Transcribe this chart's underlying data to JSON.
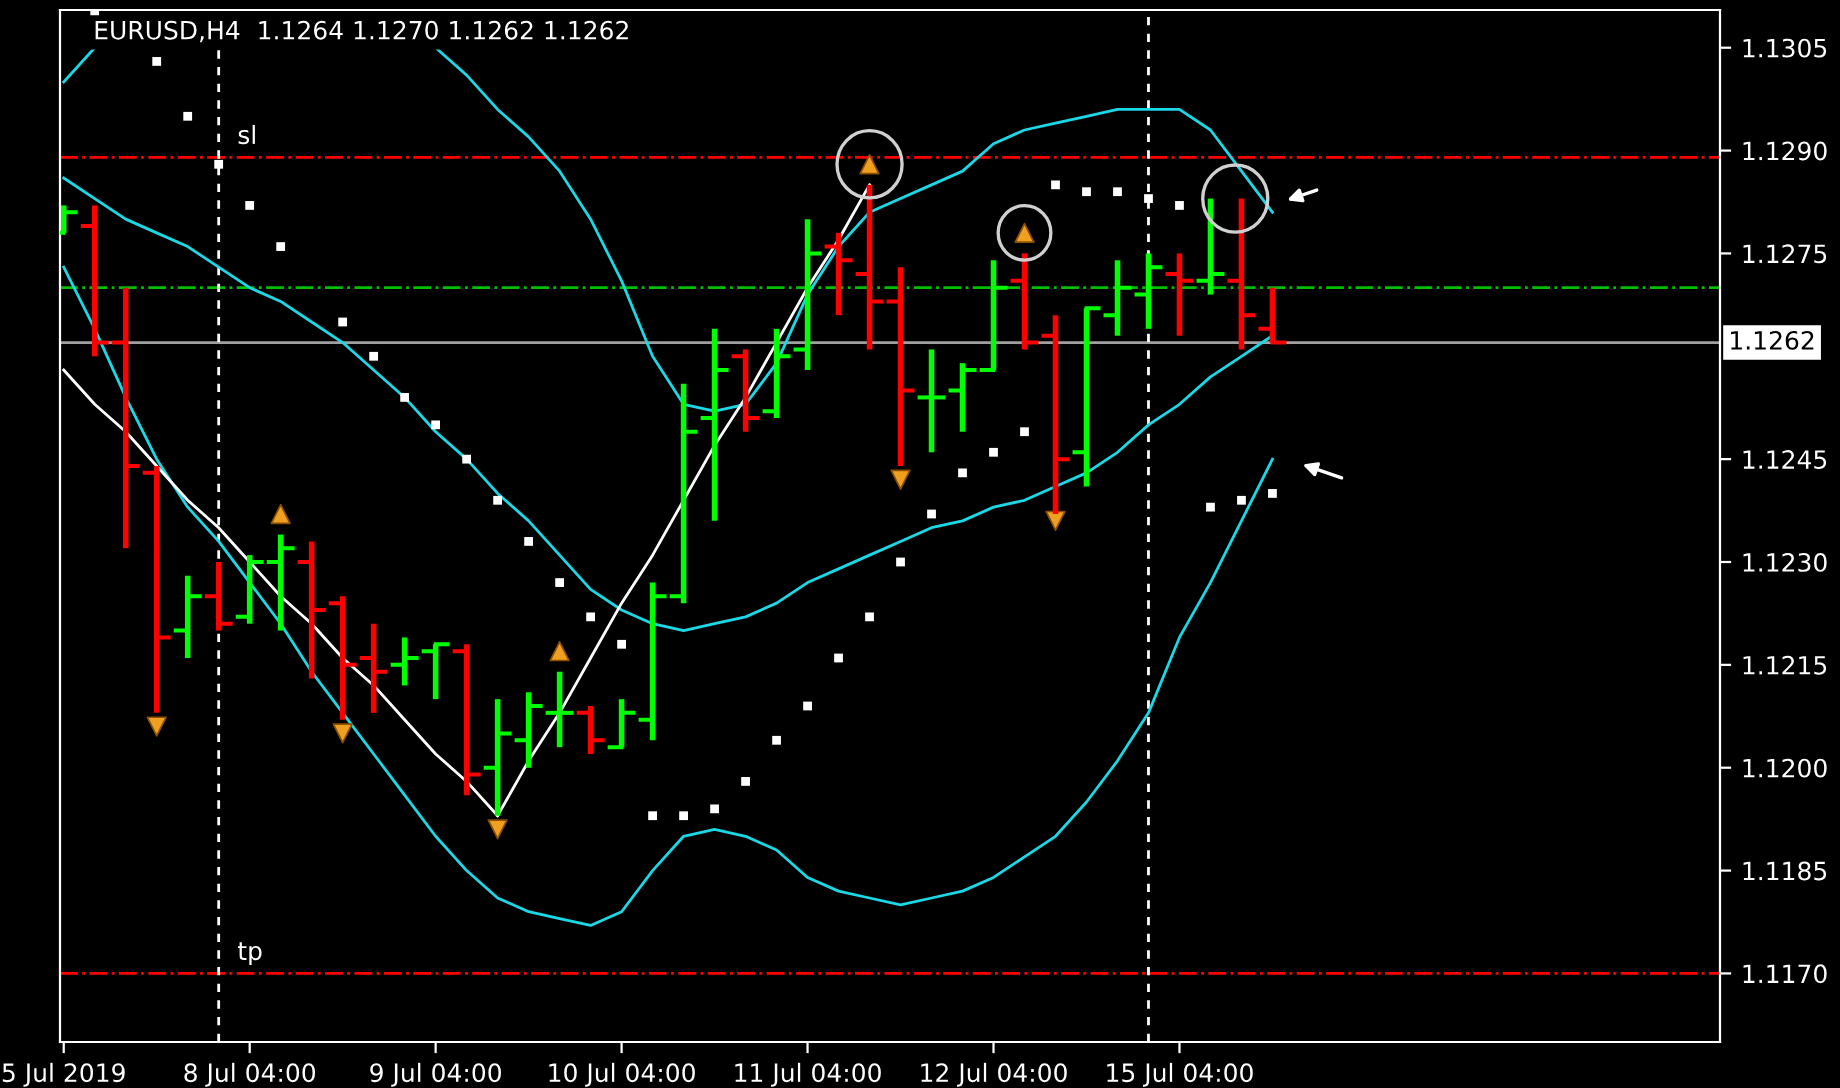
{
  "chart_data": {
    "type": "candlestick",
    "title": "EURUSD,H4  1.1264 1.1270 1.1262 1.1262",
    "categories": [
      "5 Jul 2019",
      null,
      null,
      null,
      null,
      null,
      "8 Jul 04:00",
      null,
      null,
      null,
      null,
      null,
      "9 Jul 04:00",
      null,
      null,
      null,
      null,
      null,
      "10 Jul 04:00",
      null,
      null,
      null,
      null,
      null,
      "11 Jul 04:00",
      null,
      null,
      null,
      null,
      null,
      "12 Jul 04:00",
      null,
      null,
      null,
      null,
      null,
      "15 Jul 04:00",
      null,
      null,
      null
    ],
    "ohlc": [
      [
        1.1278,
        1.1282,
        1.1278,
        1.1281
      ],
      [
        1.1279,
        1.1282,
        1.126,
        1.1262
      ],
      [
        1.1262,
        1.127,
        1.1232,
        1.1244
      ],
      [
        1.1243,
        1.1244,
        1.1208,
        1.1219
      ],
      [
        1.122,
        1.1228,
        1.1216,
        1.1225
      ],
      [
        1.1225,
        1.123,
        1.122,
        1.1221
      ],
      [
        1.1222,
        1.1231,
        1.1221,
        1.123
      ],
      [
        1.123,
        1.1234,
        1.122,
        1.1232
      ],
      [
        1.123,
        1.1233,
        1.1213,
        1.1223
      ],
      [
        1.1224,
        1.1225,
        1.1207,
        1.1215
      ],
      [
        1.1216,
        1.1221,
        1.1208,
        1.1214
      ],
      [
        1.1215,
        1.1219,
        1.1212,
        1.1216
      ],
      [
        1.1217,
        1.1218,
        1.121,
        1.1218
      ],
      [
        1.1217,
        1.1218,
        1.1196,
        1.1199
      ],
      [
        1.12,
        1.121,
        1.1193,
        1.1205
      ],
      [
        1.1204,
        1.1211,
        1.12,
        1.1209
      ],
      [
        1.1208,
        1.1214,
        1.1203,
        1.1208
      ],
      [
        1.1208,
        1.1209,
        1.1202,
        1.1204
      ],
      [
        1.1203,
        1.121,
        1.1203,
        1.1208
      ],
      [
        1.1207,
        1.1227,
        1.1204,
        1.1225
      ],
      [
        1.1225,
        1.1256,
        1.1224,
        1.1249
      ],
      [
        1.1251,
        1.1264,
        1.1236,
        1.1258
      ],
      [
        1.126,
        1.1261,
        1.1249,
        1.1251
      ],
      [
        1.1252,
        1.1264,
        1.1251,
        1.126
      ],
      [
        1.1261,
        1.128,
        1.1258,
        1.1275
      ],
      [
        1.1276,
        1.1278,
        1.1266,
        1.1274
      ],
      [
        1.1272,
        1.1285,
        1.1261,
        1.1268
      ],
      [
        1.1268,
        1.1273,
        1.1244,
        1.1255
      ],
      [
        1.1254,
        1.1261,
        1.1246,
        1.1254
      ],
      [
        1.1255,
        1.1259,
        1.1249,
        1.1258
      ],
      [
        1.1258,
        1.1274,
        1.1258,
        1.127
      ],
      [
        1.1271,
        1.1275,
        1.1261,
        1.1262
      ],
      [
        1.1263,
        1.1266,
        1.1237,
        1.1245
      ],
      [
        1.1246,
        1.1267,
        1.1241,
        1.1267
      ],
      [
        1.1266,
        1.1274,
        1.1263,
        1.127
      ],
      [
        1.1269,
        1.1275,
        1.1264,
        1.1273
      ],
      [
        1.1272,
        1.1275,
        1.1263,
        1.1271
      ],
      [
        1.1271,
        1.1283,
        1.1269,
        1.1272
      ],
      [
        1.1271,
        1.1283,
        1.1261,
        1.1266
      ],
      [
        1.1264,
        1.127,
        1.1262,
        1.1262
      ]
    ],
    "colors": [
      "#00ff00",
      "#ff0000",
      "#ff0000",
      "#ff0000",
      "#00ff00",
      "#ff0000",
      "#00ff00",
      "#00ff00",
      "#ff0000",
      "#ff0000",
      "#ff0000",
      "#00ff00",
      "#00ff00",
      "#ff0000",
      "#00ff00",
      "#00ff00",
      "#00ff00",
      "#ff0000",
      "#00ff00",
      "#00ff00",
      "#00ff00",
      "#00ff00",
      "#ff0000",
      "#00ff00",
      "#00ff00",
      "#ff0000",
      "#ff0000",
      "#ff0000",
      "#00ff00",
      "#00ff00",
      "#00ff00",
      "#ff0000",
      "#ff0000",
      "#00ff00",
      "#00ff00",
      "#00ff00",
      "#ff0000",
      "#00ff00",
      "#ff0000",
      "#ff0000"
    ],
    "series": [
      {
        "type": "line",
        "color": "#1ad8e6",
        "values": [
          1.13,
          1.1305,
          null,
          null,
          null,
          null,
          null,
          null,
          null,
          null,
          null,
          null,
          1.1305,
          1.1301,
          1.1296,
          1.1292,
          1.1287,
          1.128,
          1.1271,
          1.126,
          1.1253,
          1.1252,
          1.1253,
          1.1259,
          1.1269,
          1.1276,
          1.1281,
          1.1283,
          1.1285,
          1.1287,
          1.1291,
          1.1293,
          1.1294,
          1.1295,
          1.1296,
          1.1296,
          1.1296,
          1.1293,
          1.1287,
          1.1281
        ]
      },
      {
        "type": "line",
        "color": "#1ad8e6",
        "values": [
          1.1286,
          1.1283,
          1.128,
          1.1278,
          1.1276,
          1.1273,
          1.127,
          1.1268,
          1.1265,
          1.1262,
          1.1258,
          1.1254,
          1.1249,
          1.1245,
          1.124,
          1.1236,
          1.1231,
          1.1226,
          1.1223,
          1.1221,
          1.122,
          1.1221,
          1.1222,
          1.1224,
          1.1227,
          1.1229,
          1.1231,
          1.1233,
          1.1235,
          1.1236,
          1.1238,
          1.1239,
          1.1241,
          1.1243,
          1.1246,
          1.125,
          1.1253,
          1.1257,
          1.126,
          1.1263
        ]
      },
      {
        "type": "line",
        "color": "#1ad8e6",
        "values": [
          1.1273,
          1.1264,
          1.1254,
          1.1245,
          1.1238,
          1.1233,
          1.1227,
          1.1221,
          1.1214,
          1.1208,
          1.1202,
          1.1196,
          1.119,
          1.1185,
          1.1181,
          1.1179,
          1.1178,
          1.1177,
          1.1179,
          1.1185,
          1.119,
          1.1191,
          1.119,
          1.1188,
          1.1184,
          1.1182,
          1.1181,
          1.118,
          1.1181,
          1.1182,
          1.1184,
          1.1187,
          1.119,
          1.1195,
          1.1201,
          1.1208,
          1.1219,
          1.1227,
          1.1236,
          1.1245
        ]
      },
      {
        "type": "line",
        "color": "#ffffff",
        "values": [
          1.1258,
          1.1253,
          1.1249,
          1.1244,
          1.1239,
          1.1235,
          1.123,
          1.1225,
          1.1221,
          1.1216,
          1.1212,
          1.1207,
          1.1202,
          1.1198,
          1.1193,
          null,
          null,
          null,
          null,
          null,
          null,
          null,
          null,
          null,
          null,
          null,
          null,
          null,
          null,
          null,
          null,
          null,
          null,
          null,
          null,
          null,
          null,
          null,
          null,
          null
        ]
      },
      {
        "type": "line",
        "color": "#ffffff",
        "values": [
          null,
          null,
          null,
          null,
          null,
          null,
          null,
          null,
          null,
          null,
          null,
          null,
          null,
          null,
          1.1193,
          1.1201,
          1.1208,
          1.1216,
          1.1224,
          1.1231,
          1.1239,
          1.1247,
          1.1254,
          1.1262,
          1.127,
          1.1277,
          1.1285,
          null,
          null,
          null,
          null,
          null,
          null,
          null,
          null,
          null,
          null,
          null,
          null,
          null
        ]
      },
      {
        "type": "scatter",
        "color": "#ffffff",
        "marker": "square",
        "values": [
          null,
          1.131,
          null,
          1.1303,
          1.1295,
          1.1288,
          1.1282,
          1.1276,
          null,
          1.1265,
          1.126,
          1.1254,
          1.125,
          1.1245,
          1.1239,
          1.1233,
          1.1227,
          1.1222,
          1.1218,
          1.1193,
          1.1193,
          1.1194,
          1.1198,
          1.1204,
          1.1209,
          1.1216,
          1.1222,
          1.123,
          1.1237,
          1.1243,
          1.1246,
          1.1249,
          1.1285,
          1.1284,
          1.1284,
          1.1283,
          1.1282,
          1.1238,
          1.1239,
          1.124
        ]
      },
      {
        "type": "scatter",
        "color": "#f0a020",
        "marker": "triangle",
        "values": [
          null,
          null,
          null,
          null,
          null,
          null,
          null,
          1.1237,
          null,
          null,
          null,
          null,
          null,
          null,
          null,
          null,
          1.1217,
          null,
          null,
          null,
          null,
          null,
          null,
          null,
          null,
          null,
          1.1288,
          null,
          null,
          null,
          null,
          1.1278,
          null,
          null,
          null,
          null,
          null,
          null,
          null,
          null
        ]
      },
      {
        "type": "scatter",
        "color": "#f0a020",
        "marker": "triangle_down",
        "values": [
          null,
          null,
          null,
          1.1206,
          null,
          null,
          null,
          null,
          null,
          1.1205,
          null,
          null,
          null,
          null,
          1.1191,
          null,
          null,
          null,
          null,
          null,
          null,
          null,
          null,
          null,
          null,
          null,
          null,
          1.1242,
          null,
          null,
          null,
          null,
          1.1236,
          null,
          null,
          null,
          null,
          null,
          null,
          null
        ]
      }
    ],
    "ylim": [
      1.116,
      1.13105
    ],
    "yticks": [
      {
        "value": 1.1305,
        "label": "1.1305"
      },
      {
        "value": 1.129,
        "label": "1.1290"
      },
      {
        "value": 1.1275,
        "label": "1.1275"
      },
      {
        "value": 1.1245,
        "label": "1.1245"
      },
      {
        "value": 1.123,
        "label": "1.1230"
      },
      {
        "value": 1.1215,
        "label": "1.1215"
      },
      {
        "value": 1.12,
        "label": "1.1200"
      },
      {
        "value": 1.1185,
        "label": "1.1185"
      },
      {
        "value": 1.117,
        "label": "1.1170"
      }
    ],
    "ref_lines": [
      {
        "axis": "y",
        "value": 1.1289,
        "label": "sl",
        "color": "#ff0000",
        "line_style": "dashdot"
      },
      {
        "axis": "y",
        "value": 1.127,
        "color": "#00c000",
        "line_style": "dashdot"
      },
      {
        "axis": "y",
        "value": 1.117,
        "label": "tp",
        "color": "#ff0000",
        "line_style": "dashdot"
      },
      {
        "axis": "y",
        "value": 1.1262,
        "label": "1.1262",
        "color": "#a0a0a0",
        "line_style": "solid"
      }
    ],
    "grid": false,
    "legend": false
  }
}
